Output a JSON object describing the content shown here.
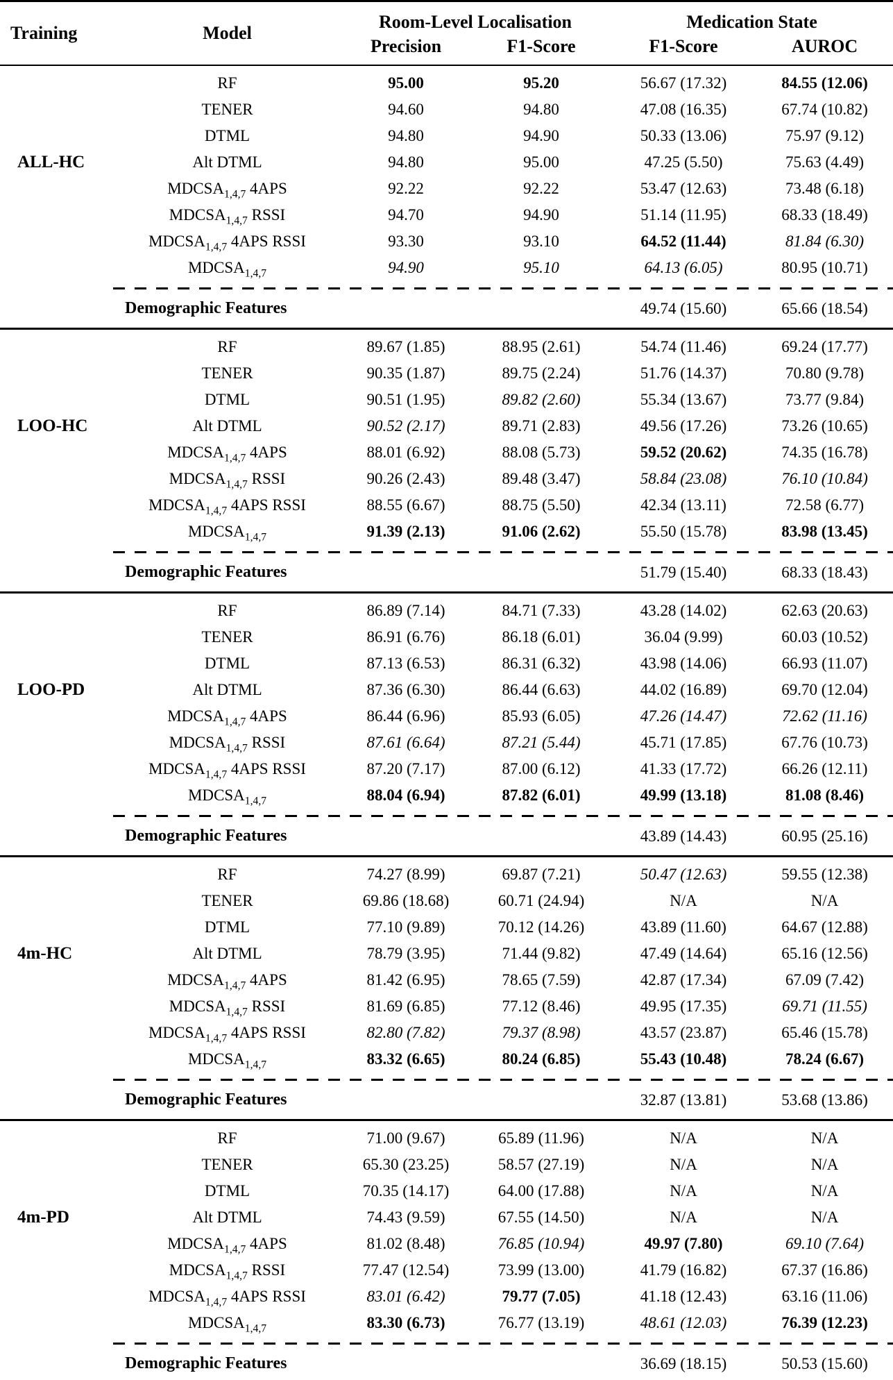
{
  "header": {
    "training": "Training",
    "model": "Model",
    "groups": [
      {
        "label": "Room-Level Localisation",
        "subs": [
          "Precision",
          "F1-Score"
        ]
      },
      {
        "label": "Medication State",
        "subs": [
          "F1-Score",
          "AUROC"
        ]
      }
    ]
  },
  "groups": [
    {
      "training": "ALL-HC",
      "rows": [
        {
          "model": "RF",
          "cells": [
            [
              "95.00",
              "b"
            ],
            [
              "95.20",
              "b"
            ],
            [
              "56.67 (17.32)",
              ""
            ],
            [
              "84.55 (12.06)",
              "b"
            ]
          ]
        },
        {
          "model": "TENER",
          "cells": [
            [
              "94.60",
              ""
            ],
            [
              "94.80",
              ""
            ],
            [
              "47.08 (16.35)",
              ""
            ],
            [
              "67.74 (10.82)",
              ""
            ]
          ]
        },
        {
          "model": "DTML",
          "cells": [
            [
              "94.80",
              ""
            ],
            [
              "94.90",
              ""
            ],
            [
              "50.33 (13.06)",
              ""
            ],
            [
              "75.97 (9.12)",
              ""
            ]
          ]
        },
        {
          "model": "Alt DTML",
          "cells": [
            [
              "94.80",
              ""
            ],
            [
              "95.00",
              ""
            ],
            [
              "47.25 (5.50)",
              ""
            ],
            [
              "75.63 (4.49)",
              ""
            ]
          ]
        },
        {
          "model": "MDCSA_{1,4,7} 4APS",
          "cells": [
            [
              "92.22",
              ""
            ],
            [
              "92.22",
              ""
            ],
            [
              "53.47 (12.63)",
              ""
            ],
            [
              "73.48 (6.18)",
              ""
            ]
          ]
        },
        {
          "model": "MDCSA_{1,4,7} RSSI",
          "cells": [
            [
              "94.70",
              ""
            ],
            [
              "94.90",
              ""
            ],
            [
              "51.14 (11.95)",
              ""
            ],
            [
              "68.33 (18.49)",
              ""
            ]
          ]
        },
        {
          "model": "MDCSA_{1,4,7} 4APS RSSI",
          "cells": [
            [
              "93.30",
              ""
            ],
            [
              "93.10",
              ""
            ],
            [
              "64.52 (11.44)",
              "b"
            ],
            [
              "81.84 (6.30)",
              "i"
            ]
          ]
        },
        {
          "model": "MDCSA_{1,4,7}",
          "cells": [
            [
              "94.90",
              "i"
            ],
            [
              "95.10",
              "i"
            ],
            [
              "64.13 (6.05)",
              "i"
            ],
            [
              "80.95 (10.71)",
              ""
            ]
          ]
        }
      ],
      "demographic": {
        "label": "Demographic Features",
        "cells": [
          [
            "",
            ""
          ],
          [
            "",
            ""
          ],
          [
            "49.74 (15.60)",
            ""
          ],
          [
            "65.66 (18.54)",
            ""
          ]
        ]
      }
    },
    {
      "training": "LOO-HC",
      "rows": [
        {
          "model": "RF",
          "cells": [
            [
              "89.67 (1.85)",
              ""
            ],
            [
              "88.95 (2.61)",
              ""
            ],
            [
              "54.74 (11.46)",
              ""
            ],
            [
              "69.24 (17.77)",
              ""
            ]
          ]
        },
        {
          "model": "TENER",
          "cells": [
            [
              "90.35 (1.87)",
              ""
            ],
            [
              "89.75 (2.24)",
              ""
            ],
            [
              "51.76 (14.37)",
              ""
            ],
            [
              "70.80 (9.78)",
              ""
            ]
          ]
        },
        {
          "model": "DTML",
          "cells": [
            [
              "90.51 (1.95)",
              ""
            ],
            [
              "89.82 (2.60)",
              "i"
            ],
            [
              "55.34 (13.67)",
              ""
            ],
            [
              "73.77 (9.84)",
              ""
            ]
          ]
        },
        {
          "model": "Alt DTML",
          "cells": [
            [
              "90.52 (2.17)",
              "i"
            ],
            [
              "89.71 (2.83)",
              ""
            ],
            [
              "49.56 (17.26)",
              ""
            ],
            [
              "73.26 (10.65)",
              ""
            ]
          ]
        },
        {
          "model": "MDCSA_{1,4,7} 4APS",
          "cells": [
            [
              "88.01 (6.92)",
              ""
            ],
            [
              "88.08 (5.73)",
              ""
            ],
            [
              "59.52 (20.62)",
              "b"
            ],
            [
              "74.35 (16.78)",
              ""
            ]
          ]
        },
        {
          "model": "MDCSA_{1,4,7} RSSI",
          "cells": [
            [
              "90.26 (2.43)",
              ""
            ],
            [
              "89.48 (3.47)",
              ""
            ],
            [
              "58.84 (23.08)",
              "i"
            ],
            [
              "76.10 (10.84)",
              "i"
            ]
          ]
        },
        {
          "model": "MDCSA_{1,4,7} 4APS RSSI",
          "cells": [
            [
              "88.55 (6.67)",
              ""
            ],
            [
              "88.75 (5.50)",
              ""
            ],
            [
              "42.34 (13.11)",
              ""
            ],
            [
              "72.58 (6.77)",
              ""
            ]
          ]
        },
        {
          "model": "MDCSA_{1,4,7}",
          "cells": [
            [
              "91.39 (2.13)",
              "b"
            ],
            [
              "91.06 (2.62)",
              "b"
            ],
            [
              "55.50 (15.78)",
              ""
            ],
            [
              "83.98 (13.45)",
              "b"
            ]
          ]
        }
      ],
      "demographic": {
        "label": "Demographic Features",
        "cells": [
          [
            "",
            ""
          ],
          [
            "",
            ""
          ],
          [
            "51.79 (15.40)",
            ""
          ],
          [
            "68.33 (18.43)",
            ""
          ]
        ]
      }
    },
    {
      "training": "LOO-PD",
      "rows": [
        {
          "model": "RF",
          "cells": [
            [
              "86.89 (7.14)",
              ""
            ],
            [
              "84.71 (7.33)",
              ""
            ],
            [
              "43.28 (14.02)",
              ""
            ],
            [
              "62.63 (20.63)",
              ""
            ]
          ]
        },
        {
          "model": "TENER",
          "cells": [
            [
              "86.91 (6.76)",
              ""
            ],
            [
              "86.18 (6.01)",
              ""
            ],
            [
              "36.04 (9.99)",
              ""
            ],
            [
              "60.03 (10.52)",
              ""
            ]
          ]
        },
        {
          "model": "DTML",
          "cells": [
            [
              "87.13 (6.53)",
              ""
            ],
            [
              "86.31 (6.32)",
              ""
            ],
            [
              "43.98 (14.06)",
              ""
            ],
            [
              "66.93 (11.07)",
              ""
            ]
          ]
        },
        {
          "model": "Alt DTML",
          "cells": [
            [
              "87.36 (6.30)",
              ""
            ],
            [
              "86.44 (6.63)",
              ""
            ],
            [
              "44.02 (16.89)",
              ""
            ],
            [
              "69.70 (12.04)",
              ""
            ]
          ]
        },
        {
          "model": "MDCSA_{1,4,7} 4APS",
          "cells": [
            [
              "86.44 (6.96)",
              ""
            ],
            [
              "85.93 (6.05)",
              ""
            ],
            [
              "47.26 (14.47)",
              "i"
            ],
            [
              "72.62 (11.16)",
              "i"
            ]
          ]
        },
        {
          "model": "MDCSA_{1,4,7} RSSI",
          "cells": [
            [
              "87.61 (6.64)",
              "i"
            ],
            [
              "87.21 (5.44)",
              "i"
            ],
            [
              "45.71 (17.85)",
              ""
            ],
            [
              "67.76 (10.73)",
              ""
            ]
          ]
        },
        {
          "model": "MDCSA_{1,4,7} 4APS RSSI",
          "cells": [
            [
              "87.20 (7.17)",
              ""
            ],
            [
              "87.00 (6.12)",
              ""
            ],
            [
              "41.33 (17.72)",
              ""
            ],
            [
              "66.26 (12.11)",
              ""
            ]
          ]
        },
        {
          "model": "MDCSA_{1,4,7}",
          "cells": [
            [
              "88.04 (6.94)",
              "b"
            ],
            [
              "87.82 (6.01)",
              "b"
            ],
            [
              "49.99 (13.18)",
              "b"
            ],
            [
              "81.08 (8.46)",
              "b"
            ]
          ]
        }
      ],
      "demographic": {
        "label": "Demographic Features",
        "cells": [
          [
            "",
            ""
          ],
          [
            "",
            ""
          ],
          [
            "43.89 (14.43)",
            ""
          ],
          [
            "60.95 (25.16)",
            ""
          ]
        ]
      }
    },
    {
      "training": "4m-HC",
      "rows": [
        {
          "model": "RF",
          "cells": [
            [
              "74.27 (8.99)",
              ""
            ],
            [
              "69.87 (7.21)",
              ""
            ],
            [
              "50.47 (12.63)",
              "i"
            ],
            [
              "59.55 (12.38)",
              ""
            ]
          ]
        },
        {
          "model": "TENER",
          "cells": [
            [
              "69.86 (18.68)",
              ""
            ],
            [
              "60.71 (24.94)",
              ""
            ],
            [
              "N/A",
              ""
            ],
            [
              "N/A",
              ""
            ]
          ]
        },
        {
          "model": "DTML",
          "cells": [
            [
              "77.10 (9.89)",
              ""
            ],
            [
              "70.12 (14.26)",
              ""
            ],
            [
              "43.89 (11.60)",
              ""
            ],
            [
              "64.67 (12.88)",
              ""
            ]
          ]
        },
        {
          "model": "Alt DTML",
          "cells": [
            [
              "78.79 (3.95)",
              ""
            ],
            [
              "71.44 (9.82)",
              ""
            ],
            [
              "47.49 (14.64)",
              ""
            ],
            [
              "65.16 (12.56)",
              ""
            ]
          ]
        },
        {
          "model": "MDCSA_{1,4,7} 4APS",
          "cells": [
            [
              "81.42 (6.95)",
              ""
            ],
            [
              "78.65 (7.59)",
              ""
            ],
            [
              "42.87 (17.34)",
              ""
            ],
            [
              "67.09 (7.42)",
              ""
            ]
          ]
        },
        {
          "model": "MDCSA_{1,4,7} RSSI",
          "cells": [
            [
              "81.69 (6.85)",
              ""
            ],
            [
              "77.12 (8.46)",
              ""
            ],
            [
              "49.95 (17.35)",
              ""
            ],
            [
              "69.71 (11.55)",
              "i"
            ]
          ]
        },
        {
          "model": "MDCSA_{1,4,7} 4APS RSSI",
          "cells": [
            [
              "82.80 (7.82)",
              "i"
            ],
            [
              "79.37 (8.98)",
              "i"
            ],
            [
              "43.57 (23.87)",
              ""
            ],
            [
              "65.46 (15.78)",
              ""
            ]
          ]
        },
        {
          "model": "MDCSA_{1,4,7}",
          "cells": [
            [
              "83.32 (6.65)",
              "b"
            ],
            [
              "80.24 (6.85)",
              "b"
            ],
            [
              "55.43 (10.48)",
              "b"
            ],
            [
              "78.24 (6.67)",
              "b"
            ]
          ]
        }
      ],
      "demographic": {
        "label": "Demographic Features",
        "cells": [
          [
            "",
            ""
          ],
          [
            "",
            ""
          ],
          [
            "32.87 (13.81)",
            ""
          ],
          [
            "53.68 (13.86)",
            ""
          ]
        ]
      }
    },
    {
      "training": "4m-PD",
      "rows": [
        {
          "model": "RF",
          "cells": [
            [
              "71.00 (9.67)",
              ""
            ],
            [
              "65.89 (11.96)",
              ""
            ],
            [
              "N/A",
              ""
            ],
            [
              "N/A",
              ""
            ]
          ]
        },
        {
          "model": "TENER",
          "cells": [
            [
              "65.30 (23.25)",
              ""
            ],
            [
              "58.57 (27.19)",
              ""
            ],
            [
              "N/A",
              ""
            ],
            [
              "N/A",
              ""
            ]
          ]
        },
        {
          "model": "DTML",
          "cells": [
            [
              "70.35 (14.17)",
              ""
            ],
            [
              "64.00 (17.88)",
              ""
            ],
            [
              "N/A",
              ""
            ],
            [
              "N/A",
              ""
            ]
          ]
        },
        {
          "model": "Alt DTML",
          "cells": [
            [
              "74.43 (9.59)",
              ""
            ],
            [
              "67.55 (14.50)",
              ""
            ],
            [
              "N/A",
              ""
            ],
            [
              "N/A",
              ""
            ]
          ]
        },
        {
          "model": "MDCSA_{1,4,7} 4APS",
          "cells": [
            [
              "81.02 (8.48)",
              ""
            ],
            [
              "76.85 (10.94)",
              "i"
            ],
            [
              "49.97 (7.80)",
              "b"
            ],
            [
              "69.10 (7.64)",
              "i"
            ]
          ]
        },
        {
          "model": "MDCSA_{1,4,7} RSSI",
          "cells": [
            [
              "77.47 (12.54)",
              ""
            ],
            [
              "73.99 (13.00)",
              ""
            ],
            [
              "41.79 (16.82)",
              ""
            ],
            [
              "67.37 (16.86)",
              ""
            ]
          ]
        },
        {
          "model": "MDCSA_{1,4,7} 4APS RSSI",
          "cells": [
            [
              "83.01 (6.42)",
              "i"
            ],
            [
              "79.77 (7.05)",
              "b"
            ],
            [
              "41.18 (12.43)",
              ""
            ],
            [
              "63.16 (11.06)",
              ""
            ]
          ]
        },
        {
          "model": "MDCSA_{1,4,7}",
          "cells": [
            [
              "83.30 (6.73)",
              "b"
            ],
            [
              "76.77 (13.19)",
              ""
            ],
            [
              "48.61 (12.03)",
              "i"
            ],
            [
              "76.39 (12.23)",
              "b"
            ]
          ]
        }
      ],
      "demographic": {
        "label": "Demographic Features",
        "cells": [
          [
            "",
            ""
          ],
          [
            "",
            ""
          ],
          [
            "36.69 (18.15)",
            ""
          ],
          [
            "50.53 (15.60)",
            ""
          ]
        ]
      }
    }
  ]
}
